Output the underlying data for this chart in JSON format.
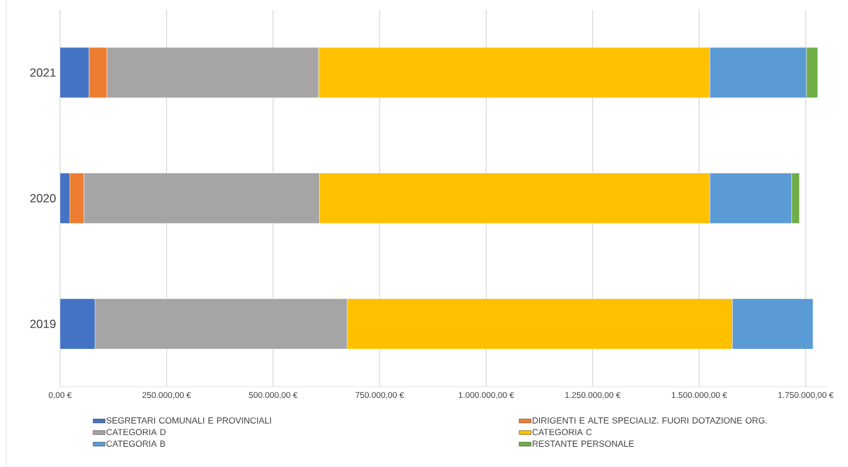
{
  "chart_data": {
    "type": "bar",
    "orientation": "horizontal",
    "stacked": true,
    "categories": [
      "2021",
      "2020",
      "2019"
    ],
    "series": [
      {
        "name": "SEGRETARI COMUNALI E PROVINCIALI",
        "color": "#4472c4",
        "values": [
          68000,
          23000,
          82000
        ]
      },
      {
        "name": "DIRIGENTI E ALTE SPECIALIZ. FUORI DOTAZIONE ORG.",
        "color": "#ed7d31",
        "values": [
          42000,
          33000,
          null
        ]
      },
      {
        "name": "CATEGORIA D",
        "color": "#a5a5a5",
        "values": [
          497000,
          553000,
          592000
        ]
      },
      {
        "name": "CATEGORIA C",
        "color": "#ffc000",
        "values": [
          918000,
          916000,
          904000
        ]
      },
      {
        "name": "CATEGORIA B",
        "color": "#5b9bd5",
        "values": [
          227000,
          192000,
          189000
        ]
      },
      {
        "name": "RESTANTE PERSONALE",
        "color": "#70ad47",
        "values": [
          26000,
          18000,
          null
        ]
      }
    ],
    "xlim": [
      0,
      1800000
    ],
    "xticks": [
      {
        "value": 0,
        "label": "0,00 €"
      },
      {
        "value": 250000,
        "label": "250.000,00 €"
      },
      {
        "value": 500000,
        "label": "500.000,00 €"
      },
      {
        "value": 750000,
        "label": "750.000,00 €"
      },
      {
        "value": 1000000,
        "label": "1.000.000,00 €"
      },
      {
        "value": 1250000,
        "label": "1.250.000,00 €"
      },
      {
        "value": 1500000,
        "label": "1.500.000,00 €"
      },
      {
        "value": 1750000,
        "label": "1.750.000,00 €"
      }
    ],
    "grid": "x",
    "legend": "bottom"
  }
}
